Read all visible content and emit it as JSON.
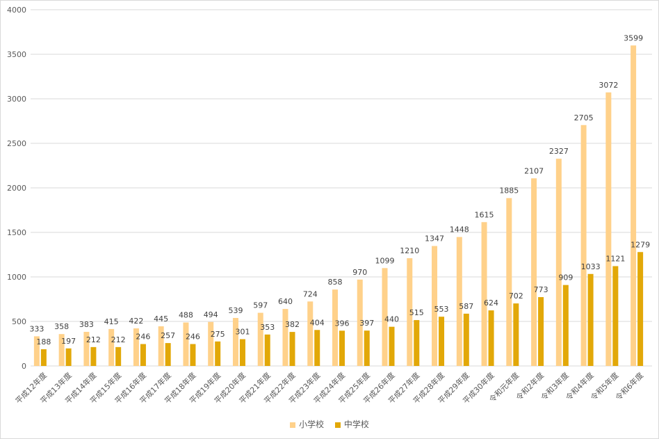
{
  "chart_data": {
    "type": "bar",
    "title": "",
    "xlabel": "",
    "ylabel": "",
    "ylim": [
      0,
      4000
    ],
    "yticks": [
      "0",
      "500",
      "1000",
      "1500",
      "2000",
      "2500",
      "3000",
      "3500",
      "4000"
    ],
    "grid": "horizontal",
    "legend_position": "bottom",
    "categories": [
      "平成12年度",
      "平成13年度",
      "平成14年度",
      "平成15年度",
      "平成16年度",
      "平成17年度",
      "平成18年度",
      "平成19年度",
      "平成20年度",
      "平成21年度",
      "平成22年度",
      "平成23年度",
      "平成24年度",
      "平成25年度",
      "平成26年度",
      "平成27年度",
      "平成28年度",
      "平成29年度",
      "平成30年度",
      "令和元年度",
      "令和2年度",
      "令和3年度",
      "令和4年度",
      "令和5年度",
      "令和6年度"
    ],
    "series": [
      {
        "name": "小学校",
        "color": "#FFD18A",
        "values": [
          333,
          358,
          383,
          415,
          422,
          445,
          488,
          494,
          539,
          597,
          640,
          724,
          858,
          970,
          1099,
          1210,
          1347,
          1448,
          1615,
          1885,
          2107,
          2327,
          2705,
          3072,
          3599
        ]
      },
      {
        "name": "中学校",
        "color": "#E2A808",
        "values": [
          188,
          197,
          212,
          212,
          246,
          257,
          246,
          275,
          301,
          353,
          382,
          404,
          396,
          397,
          440,
          515,
          553,
          587,
          624,
          702,
          773,
          909,
          1033,
          1121,
          1279
        ]
      }
    ]
  }
}
